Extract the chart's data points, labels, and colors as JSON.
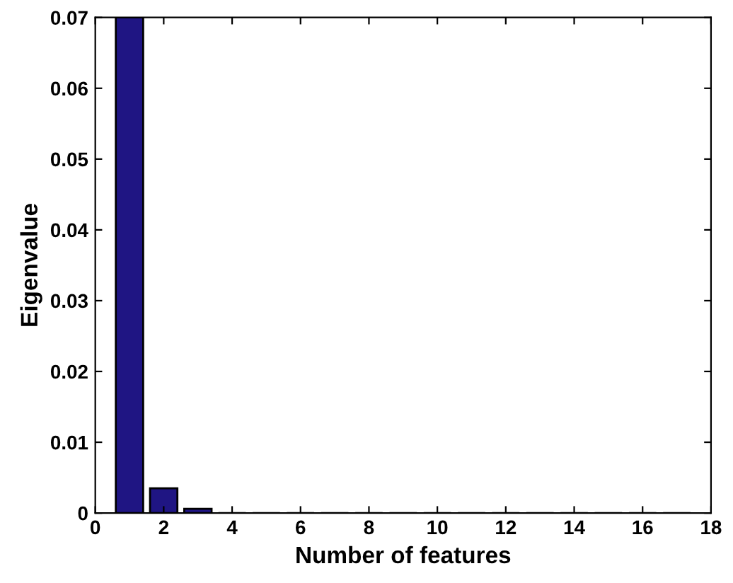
{
  "chart_data": {
    "type": "bar",
    "xlabel": "Number of features",
    "ylabel": "Eigenvalue",
    "x": [
      1,
      2,
      3,
      4,
      5,
      6,
      7,
      8,
      9,
      10,
      11,
      12,
      13,
      14,
      15,
      16,
      17
    ],
    "values": [
      0.07,
      0.0035,
      0.0006,
      0,
      0,
      0,
      0,
      0,
      0,
      0,
      0,
      0,
      0,
      0,
      0,
      0,
      0
    ],
    "color": "#1f1583",
    "xlim": [
      0,
      18
    ],
    "xticks": [
      0,
      2,
      4,
      6,
      8,
      10,
      12,
      14,
      16,
      18
    ],
    "ylim": [
      0,
      0.07
    ],
    "yticks": [
      0,
      0.01,
      0.02,
      0.03,
      0.04,
      0.05,
      0.06,
      0.07
    ],
    "grid": false
  }
}
